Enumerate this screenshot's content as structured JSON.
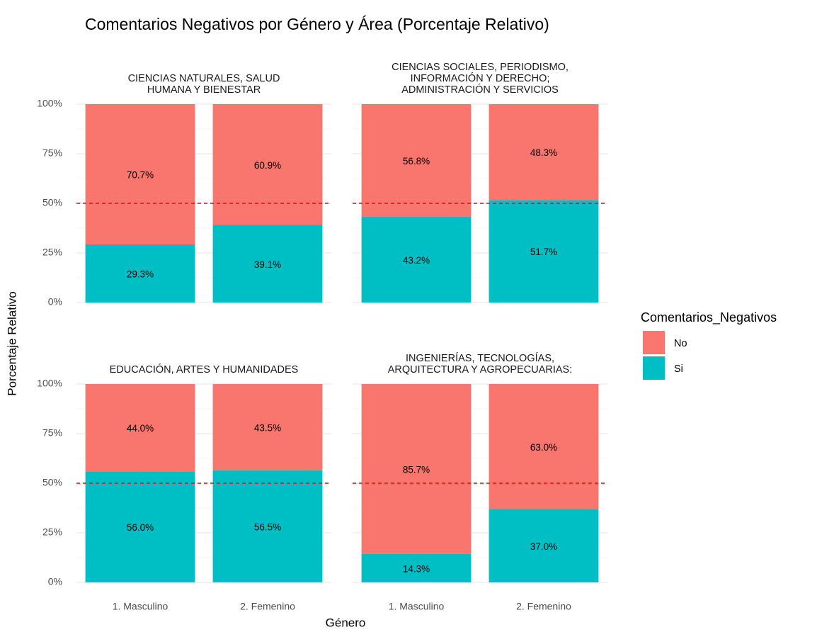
{
  "title": "Comentarios Negativos por Género y Área (Porcentaje Relativo)",
  "xlabel": "Género",
  "ylabel": "Porcentaje Relativo",
  "legend_title": "Comentarios_Negativos",
  "chart_data": [
    {
      "type": "bar",
      "stacked": true,
      "title": "CIENCIAS NATURALES, SALUD\nHUMANA Y BIENESTAR",
      "categories": [
        "1. Masculino",
        "2. Femenino"
      ],
      "series": [
        {
          "name": "No",
          "color": "#F8766D",
          "values": [
            70.7,
            60.9
          ],
          "value_labels": [
            "70.7%",
            "60.9%"
          ]
        },
        {
          "name": "Si",
          "color": "#00BFC4",
          "values": [
            29.3,
            39.1
          ],
          "value_labels": [
            "29.3%",
            "39.1%"
          ]
        }
      ],
      "ylim": [
        0,
        100
      ],
      "yticks": [
        {
          "value": 0,
          "label": "0%"
        },
        {
          "value": 25,
          "label": "25%"
        },
        {
          "value": 50,
          "label": "50%"
        },
        {
          "value": 75,
          "label": "75%"
        },
        {
          "value": 100,
          "label": "100%"
        }
      ],
      "hline": 50,
      "hline_color": "#ff0000",
      "grid": true
    },
    {
      "type": "bar",
      "stacked": true,
      "title": "CIENCIAS SOCIALES, PERIODISMO,\nINFORMACIÓN Y DERECHO;\nADMINISTRACIÓN Y SERVICIOS",
      "categories": [
        "1. Masculino",
        "2. Femenino"
      ],
      "series": [
        {
          "name": "No",
          "color": "#F8766D",
          "values": [
            56.8,
            48.3
          ],
          "value_labels": [
            "56.8%",
            "48.3%"
          ]
        },
        {
          "name": "Si",
          "color": "#00BFC4",
          "values": [
            43.2,
            51.7
          ],
          "value_labels": [
            "43.2%",
            "51.7%"
          ]
        }
      ],
      "ylim": [
        0,
        100
      ],
      "yticks": [
        {
          "value": 0,
          "label": "0%"
        },
        {
          "value": 25,
          "label": "25%"
        },
        {
          "value": 50,
          "label": "50%"
        },
        {
          "value": 75,
          "label": "75%"
        },
        {
          "value": 100,
          "label": "100%"
        }
      ],
      "hline": 50,
      "hline_color": "#ff0000",
      "grid": true
    },
    {
      "type": "bar",
      "stacked": true,
      "title": "EDUCACIÓN, ARTES Y HUMANIDADES",
      "categories": [
        "1. Masculino",
        "2. Femenino"
      ],
      "series": [
        {
          "name": "No",
          "color": "#F8766D",
          "values": [
            44.0,
            43.5
          ],
          "value_labels": [
            "44.0%",
            "43.5%"
          ]
        },
        {
          "name": "Si",
          "color": "#00BFC4",
          "values": [
            56.0,
            56.5
          ],
          "value_labels": [
            "56.0%",
            "56.5%"
          ]
        }
      ],
      "ylim": [
        0,
        100
      ],
      "yticks": [
        {
          "value": 0,
          "label": "0%"
        },
        {
          "value": 25,
          "label": "25%"
        },
        {
          "value": 50,
          "label": "50%"
        },
        {
          "value": 75,
          "label": "75%"
        },
        {
          "value": 100,
          "label": "100%"
        }
      ],
      "hline": 50,
      "hline_color": "#ff0000",
      "grid": true
    },
    {
      "type": "bar",
      "stacked": true,
      "title": "INGENIERÍAS, TECNOLOGÍAS,\nARQUITECTURA Y AGROPECUARIAS:",
      "categories": [
        "1. Masculino",
        "2. Femenino"
      ],
      "series": [
        {
          "name": "No",
          "color": "#F8766D",
          "values": [
            85.7,
            63.0
          ],
          "value_labels": [
            "85.7%",
            "63.0%"
          ]
        },
        {
          "name": "Si",
          "color": "#00BFC4",
          "values": [
            14.3,
            37.0
          ],
          "value_labels": [
            "14.3%",
            "37.0%"
          ]
        }
      ],
      "ylim": [
        0,
        100
      ],
      "yticks": [
        {
          "value": 0,
          "label": "0%"
        },
        {
          "value": 25,
          "label": "25%"
        },
        {
          "value": 50,
          "label": "50%"
        },
        {
          "value": 75,
          "label": "75%"
        },
        {
          "value": 100,
          "label": "100%"
        }
      ],
      "hline": 50,
      "hline_color": "#ff0000",
      "grid": true
    }
  ]
}
